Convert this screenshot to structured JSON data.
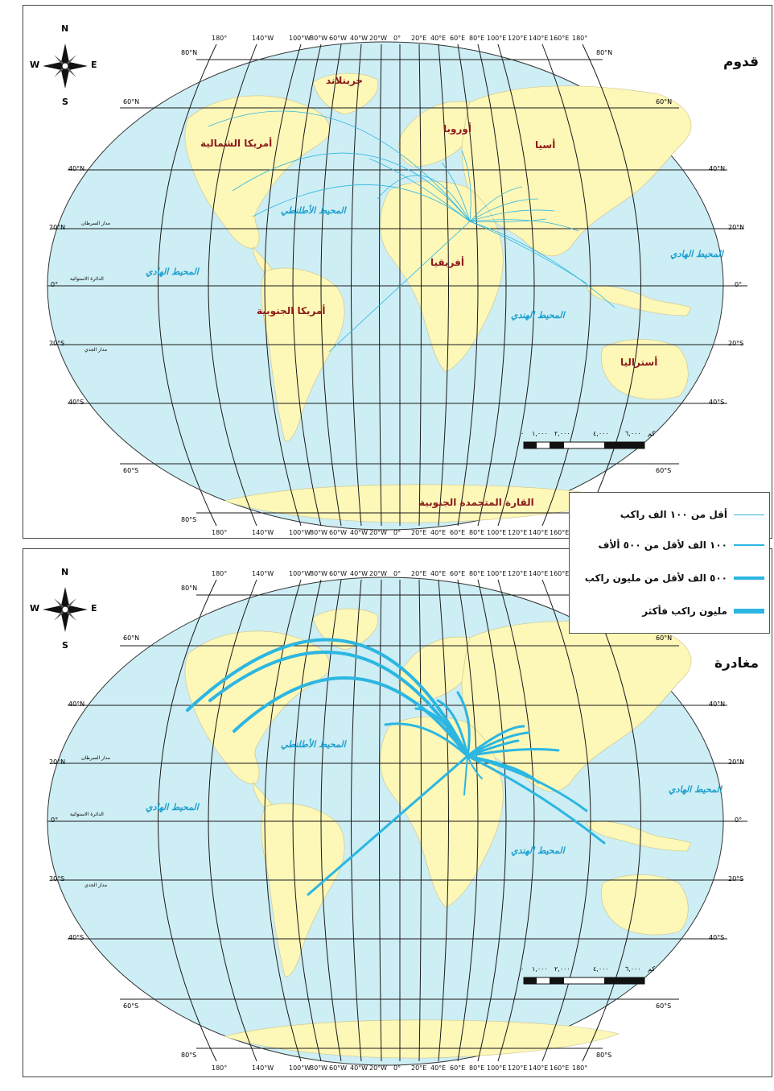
{
  "titles": {
    "arrival": "قدوم",
    "departure": "مغادرة"
  },
  "compass": {
    "n": "N",
    "s": "S",
    "e": "E",
    "w": "W"
  },
  "lon_labels": [
    "180°",
    "140°W",
    "100°W",
    "80°W",
    "60°W",
    "40°W",
    "20°W",
    "0°",
    "20°E",
    "40°E",
    "60°E",
    "80°E",
    "100°E",
    "120°E",
    "140°E",
    "160°E",
    "180°"
  ],
  "lat_labels_left": [
    "80°N",
    "60°N",
    "40°N",
    "20°N",
    "0°",
    "20°S",
    "40°S",
    "60°S",
    "80°S"
  ],
  "lat_labels_right": [
    "80°N",
    "60°N",
    "40°N",
    "20°N",
    "0°",
    "20°S",
    "40°S",
    "60°S",
    "80°S"
  ],
  "side_labels": {
    "cancer": "مدار السرطان",
    "equator": "الدائرة الاستوائية",
    "capricorn": "مدار الجدي"
  },
  "regions": {
    "greenland": "جرينلاند",
    "north_america": "أمريكا الشمالية",
    "south_america": "أمريكا الجنوبية",
    "europe": "أوروبا",
    "asia": "أسيا",
    "africa": "أفريقيا",
    "australia": "أستراليا",
    "antarctica": "القارة المتجمدة الجنوبية"
  },
  "oceans": {
    "atlantic": "المحيط الأطلنطي",
    "pacific": "المحيط الهادي",
    "indian": "المحيط الهندي"
  },
  "scale": {
    "unit": "كم",
    "ticks": [
      "٦,٠٠٠",
      "٤,٠٠٠",
      "٢,٠٠٠",
      "١,٠٠٠",
      "٠"
    ]
  },
  "legend": {
    "items": [
      {
        "label": "أقل من ١٠٠ الف راكب",
        "weight": 1
      },
      {
        "label": "١٠٠ الف لأقل من ٥٠٠ ألأف",
        "weight": 2
      },
      {
        "label": "٥٠٠ الف لأقل من مليون راكب",
        "weight": 4
      },
      {
        "label": "مليون راكب فأكثر",
        "weight": 6
      }
    ]
  },
  "colors": {
    "ocean": "#cdeef4",
    "land": "#fdf7b8",
    "grid": "#1a1a1a",
    "flow": "#2cb6e2",
    "ocean_label": "#1e9fcf",
    "region_label": "#8b1a1a"
  }
}
